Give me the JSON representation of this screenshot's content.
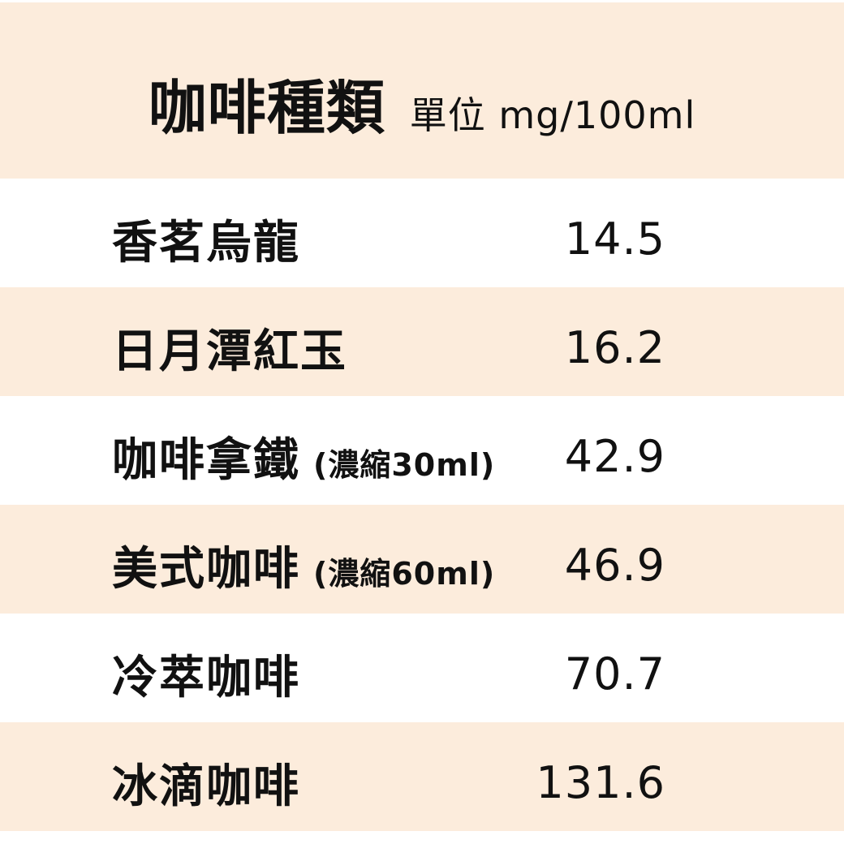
{
  "header": {
    "title": "咖啡種類",
    "unit_label": "單位 mg/100ml"
  },
  "table": {
    "rows": [
      {
        "label": "香茗烏龍",
        "note": "",
        "value": "14.5"
      },
      {
        "label": "日月潭紅玉",
        "note": "",
        "value": "16.2"
      },
      {
        "label": "咖啡拿鐵",
        "note": "(濃縮30ml)",
        "value": "42.9"
      },
      {
        "label": "美式咖啡",
        "note": "(濃縮60ml)",
        "value": "46.9"
      },
      {
        "label": "冷萃咖啡",
        "note": "",
        "value": "70.7"
      },
      {
        "label": "冰滴咖啡",
        "note": "",
        "value": "131.6"
      }
    ]
  },
  "colors": {
    "band": "#fcecdc",
    "background": "#ffffff",
    "text": "#111111"
  },
  "chart_data": {
    "type": "table",
    "title": "咖啡種類",
    "unit_label": "單位 mg/100ml",
    "unit": "mg/100ml",
    "categories": [
      "香茗烏龍",
      "日月潭紅玉",
      "咖啡拿鐵 (濃縮30ml)",
      "美式咖啡 (濃縮60ml)",
      "冷萃咖啡",
      "冰滴咖啡"
    ],
    "values": [
      14.5,
      16.2,
      42.9,
      46.9,
      70.7,
      131.6
    ]
  }
}
